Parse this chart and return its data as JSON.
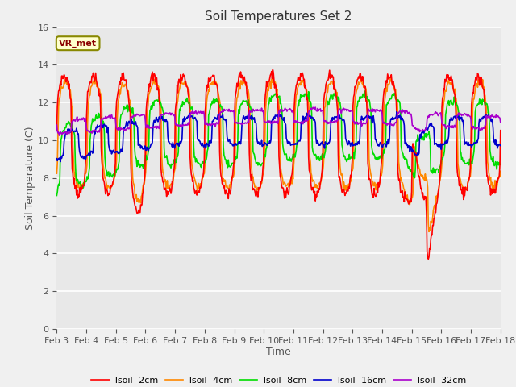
{
  "title": "Soil Temperatures Set 2",
  "xlabel": "Time",
  "ylabel": "Soil Temperature (C)",
  "ylim": [
    0,
    16
  ],
  "yticks": [
    0,
    2,
    4,
    6,
    8,
    10,
    12,
    14,
    16
  ],
  "xtick_labels": [
    "Feb 3",
    "Feb 4",
    "Feb 5",
    "Feb 6",
    "Feb 7",
    "Feb 8",
    "Feb 9",
    "Feb 10",
    "Feb 11",
    "Feb 12",
    "Feb 13",
    "Feb 14",
    "Feb 15",
    "Feb 16",
    "Feb 17",
    "Feb 18"
  ],
  "annotation_text": "VR_met",
  "series_colors": [
    "#ff0000",
    "#ff8800",
    "#00dd00",
    "#0000cc",
    "#aa00cc"
  ],
  "series_labels": [
    "Tsoil -2cm",
    "Tsoil -4cm",
    "Tsoil -8cm",
    "Tsoil -16cm",
    "Tsoil -32cm"
  ],
  "bg_color": "#e8e8e8",
  "plot_bg_color": "#e8e8e8",
  "grid_color": "#ffffff",
  "title_fontsize": 11,
  "label_fontsize": 9,
  "tick_fontsize": 8
}
